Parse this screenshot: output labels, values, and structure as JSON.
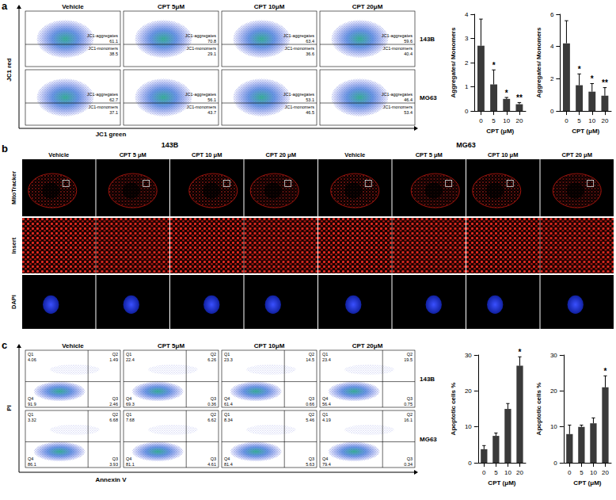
{
  "chart_data": [
    {
      "type": "bar",
      "categories": [
        "0",
        "5",
        "10",
        "20"
      ],
      "values": [
        2.7,
        1.1,
        0.5,
        0.28
      ],
      "errors": [
        1.1,
        0.6,
        0.06,
        0.07
      ],
      "annotations": [
        null,
        "*",
        "*",
        "**"
      ],
      "color": "#3a3a3a",
      "x_label": "CPT (μM)",
      "y_label": "Aggregates/ Monomers",
      "ylim": [
        0,
        4
      ],
      "yticks": [
        0,
        1,
        2,
        3,
        4
      ],
      "grid": false
    },
    {
      "type": "bar",
      "categories": [
        "0",
        "5",
        "10",
        "20"
      ],
      "values": [
        4.2,
        1.6,
        1.2,
        0.95
      ],
      "errors": [
        1.4,
        0.7,
        0.5,
        0.5
      ],
      "annotations": [
        null,
        "*",
        "*",
        "**"
      ],
      "color": "#3a3a3a",
      "x_label": "CPT (μM)",
      "y_label": "Aggregates/ Monomers",
      "ylim": [
        0,
        6
      ],
      "yticks": [
        0,
        2,
        4,
        6
      ],
      "grid": false
    },
    {
      "type": "bar",
      "categories": [
        "0",
        "5",
        "10",
        "20"
      ],
      "values": [
        3.8,
        7.5,
        15,
        27
      ],
      "errors": [
        1,
        0.8,
        1.5,
        2.5
      ],
      "annotations": [
        null,
        null,
        null,
        "*"
      ],
      "color": "#3a3a3a",
      "x_label": "CPT (μM)",
      "y_label": "Apoptotic cells %",
      "ylim": [
        0,
        30
      ],
      "yticks": [
        0,
        10,
        20,
        30
      ],
      "grid": false
    },
    {
      "type": "bar",
      "categories": [
        "0",
        "5",
        "10",
        "20"
      ],
      "values": [
        8,
        10,
        11,
        21
      ],
      "errors": [
        2.5,
        0.5,
        1.5,
        3.2
      ],
      "annotations": [
        null,
        null,
        null,
        "*"
      ],
      "color": "#3a3a3a",
      "x_label": "CPT (μM)",
      "y_label": "Apoptotic cells %",
      "ylim": [
        0,
        30
      ],
      "yticks": [
        0,
        10,
        20,
        30
      ],
      "grid": false
    }
  ],
  "figure": {
    "a": {
      "label": "a",
      "conditions": [
        "Vehicle",
        "CPT 5μM",
        "CPT 10μM",
        "CPT 20μM"
      ],
      "cell_lines": [
        "143B",
        "MG63"
      ],
      "y_axis": "JC1 red",
      "x_axis": "JC1 green",
      "gate_labels": [
        "JC1-aggregates",
        "JC1-monomers"
      ],
      "plots": [
        [
          [
            61.1,
            38.5
          ],
          [
            70.8,
            29.1
          ],
          [
            63.4,
            36.6
          ],
          [
            59.6,
            40.4
          ]
        ],
        [
          [
            62.7,
            37.1
          ],
          [
            56.1,
            43.7
          ],
          [
            53.1,
            46.5
          ],
          [
            46.4,
            53.4
          ]
        ]
      ]
    },
    "b": {
      "label": "b",
      "cell_lines": [
        "143B",
        "MG63"
      ],
      "conditions": [
        "Vehicle",
        "CPT 5 μM",
        "CPT 10 μM",
        "CPT 20 μM"
      ],
      "rows": [
        "MitoTracker",
        "Insert",
        "DAPI"
      ]
    },
    "c": {
      "label": "c",
      "conditions": [
        "Vehicle",
        "CPT 5μM",
        "CPT 10μM",
        "CPT 20μM"
      ],
      "cell_lines": [
        "143B",
        "MG63"
      ],
      "y_axis": "PI",
      "x_axis": "Annexin V",
      "quadrant_names": [
        "Q1",
        "Q2",
        "Q3",
        "Q4"
      ],
      "plots": [
        [
          [
            4.06,
            1.49,
            2.46,
            91.9
          ],
          [
            22.4,
            6.26,
            0.36,
            69.3
          ],
          [
            23.3,
            14.5,
            0.66,
            61.4
          ],
          [
            23.4,
            19.5,
            0.75,
            56.4
          ]
        ],
        [
          [
            3.32,
            6.68,
            3.93,
            86.1
          ],
          [
            7.68,
            6.62,
            4.61,
            81.1
          ],
          [
            8.34,
            5.46,
            5.63,
            81.4
          ],
          [
            4.19,
            16.1,
            0.34,
            79.4
          ]
        ]
      ]
    }
  }
}
